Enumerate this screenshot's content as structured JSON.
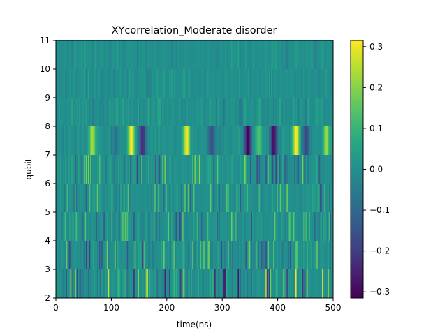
{
  "chart_data": {
    "type": "heatmap",
    "title": "XYcorrelation_Moderate disorder",
    "xlabel": "time(ns)",
    "ylabel": "qubit",
    "xlim": [
      0,
      500
    ],
    "ylim": [
      2,
      11
    ],
    "x_ticks": [
      "0",
      "100",
      "200",
      "300",
      "400",
      "500"
    ],
    "y_ticks": [
      "2",
      "3",
      "4",
      "5",
      "6",
      "7",
      "8",
      "9",
      "10",
      "11"
    ],
    "rows": [
      2,
      3,
      4,
      5,
      6,
      7,
      8,
      9,
      10
    ],
    "time_step_ns": 2,
    "colormap": "viridis",
    "colorbar": {
      "range": [
        -0.315,
        0.315
      ],
      "ticks": [
        "0.3",
        "0.2",
        "0.1",
        "0.0",
        "−0.1",
        "−0.2",
        "−0.3"
      ],
      "tick_values": [
        0.3,
        0.2,
        0.1,
        0.0,
        -0.1,
        -0.2,
        -0.3
      ]
    },
    "row_peak_amplitude": {
      "2": 0.3,
      "3": 0.2,
      "4": 0.17,
      "5": 0.17,
      "6": 0.2,
      "7": 0.3,
      "8": 0.07,
      "9": 0.05,
      "10": 0.05
    },
    "strong_band": {
      "row": 7,
      "features": [
        {
          "t": 65,
          "value": 0.24
        },
        {
          "t": 105,
          "value": -0.08
        },
        {
          "t": 135,
          "value": 0.32
        },
        {
          "t": 155,
          "value": -0.22
        },
        {
          "t": 235,
          "value": 0.3
        },
        {
          "t": 280,
          "value": -0.16
        },
        {
          "t": 345,
          "value": -0.31
        },
        {
          "t": 365,
          "value": 0.14
        },
        {
          "t": 392,
          "value": -0.29
        },
        {
          "t": 432,
          "value": 0.31
        },
        {
          "t": 450,
          "value": -0.18
        },
        {
          "t": 487,
          "value": 0.2
        }
      ]
    }
  }
}
